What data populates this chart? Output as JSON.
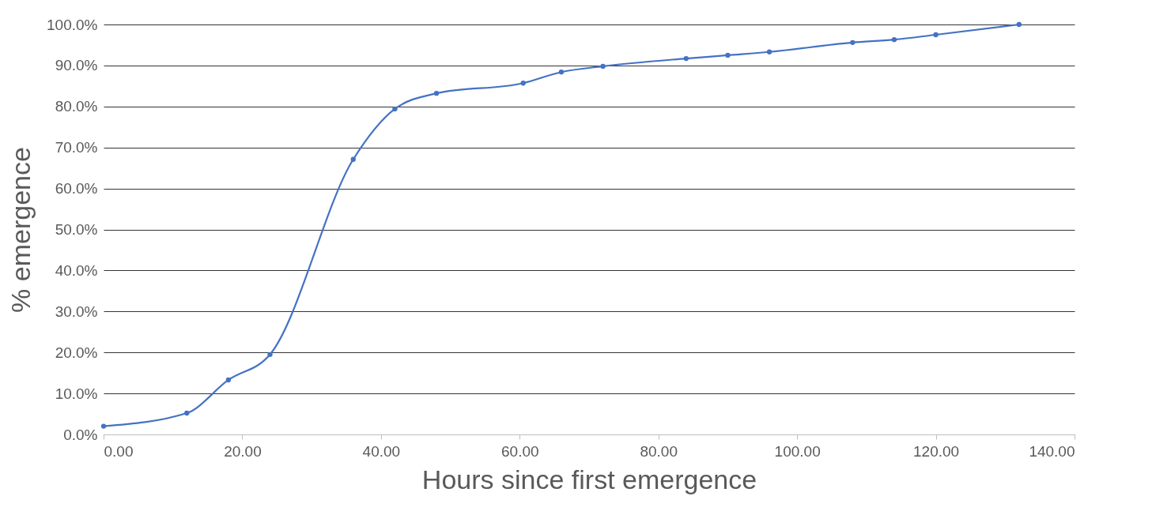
{
  "chart_data": {
    "type": "line",
    "xlabel": "Hours since first emergence",
    "ylabel": "% emergence",
    "x": [
      0,
      12,
      18,
      24,
      36,
      42,
      48,
      60.5,
      66,
      72,
      84,
      90,
      96,
      108,
      114,
      120,
      132
    ],
    "series": [
      {
        "color": "#4472c4",
        "values": [
          2.0,
          5.2,
          13.3,
          19.5,
          67.1,
          79.4,
          83.2,
          85.7,
          88.4,
          89.8,
          91.7,
          92.5,
          93.3,
          95.6,
          96.3,
          97.5,
          100.0
        ]
      }
    ],
    "xlim": [
      0,
      140
    ],
    "ylim": [
      0,
      100
    ],
    "xticks": [
      {
        "value": 0,
        "label": "0.00"
      },
      {
        "value": 20,
        "label": "20.00"
      },
      {
        "value": 40,
        "label": "40.00"
      },
      {
        "value": 60,
        "label": "60.00"
      },
      {
        "value": 80,
        "label": "80.00"
      },
      {
        "value": 100,
        "label": "100.00"
      },
      {
        "value": 120,
        "label": "120.00"
      },
      {
        "value": 140,
        "label": "140.00"
      }
    ],
    "yticks": [
      {
        "value": 0,
        "label": "0.0%"
      },
      {
        "value": 10,
        "label": "10.0%"
      },
      {
        "value": 20,
        "label": "20.0%"
      },
      {
        "value": 30,
        "label": "30.0%"
      },
      {
        "value": 40,
        "label": "40.0%"
      },
      {
        "value": 50,
        "label": "50.0%"
      },
      {
        "value": 60,
        "label": "60.0%"
      },
      {
        "value": 70,
        "label": "70.0%"
      },
      {
        "value": 80,
        "label": "80.0%"
      },
      {
        "value": 90,
        "label": "90.0%"
      },
      {
        "value": 100,
        "label": "100.0%"
      }
    ],
    "grid": "y",
    "marker": "circle",
    "line_style": "solid"
  }
}
